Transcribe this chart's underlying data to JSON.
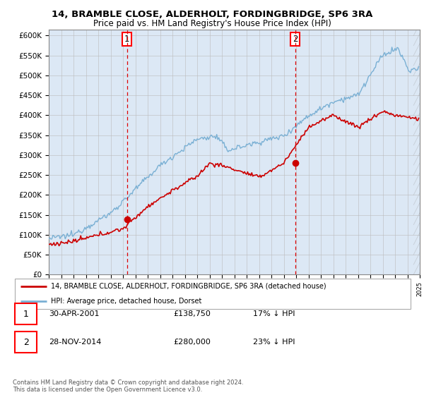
{
  "title1": "14, BRAMBLE CLOSE, ALDERHOLT, FORDINGBRIDGE, SP6 3RA",
  "title2": "Price paid vs. HM Land Registry's House Price Index (HPI)",
  "ylabel_ticks": [
    "£0",
    "£50K",
    "£100K",
    "£150K",
    "£200K",
    "£250K",
    "£300K",
    "£350K",
    "£400K",
    "£450K",
    "£500K",
    "£550K",
    "£600K"
  ],
  "ytick_values": [
    0,
    50000,
    100000,
    150000,
    200000,
    250000,
    300000,
    350000,
    400000,
    450000,
    500000,
    550000,
    600000
  ],
  "ylim": [
    0,
    615000
  ],
  "x_start_year": 1995,
  "x_end_year": 2025,
  "sale1_year": 2001.33,
  "sale1_price": 138750,
  "sale2_year": 2014.92,
  "sale2_price": 280000,
  "hpi_color": "#7ab0d4",
  "price_color": "#cc0000",
  "legend_line1": "14, BRAMBLE CLOSE, ALDERHOLT, FORDINGBRIDGE, SP6 3RA (detached house)",
  "legend_line2": "HPI: Average price, detached house, Dorset",
  "table_row1": [
    "1",
    "30-APR-2001",
    "£138,750",
    "17% ↓ HPI"
  ],
  "table_row2": [
    "2",
    "28-NOV-2014",
    "£280,000",
    "23% ↓ HPI"
  ],
  "footnote": "Contains HM Land Registry data © Crown copyright and database right 2024.\nThis data is licensed under the Open Government Licence v3.0.",
  "grid_color": "#bbbbbb",
  "plot_bg": "#dce8f5",
  "fig_bg": "#ffffff"
}
